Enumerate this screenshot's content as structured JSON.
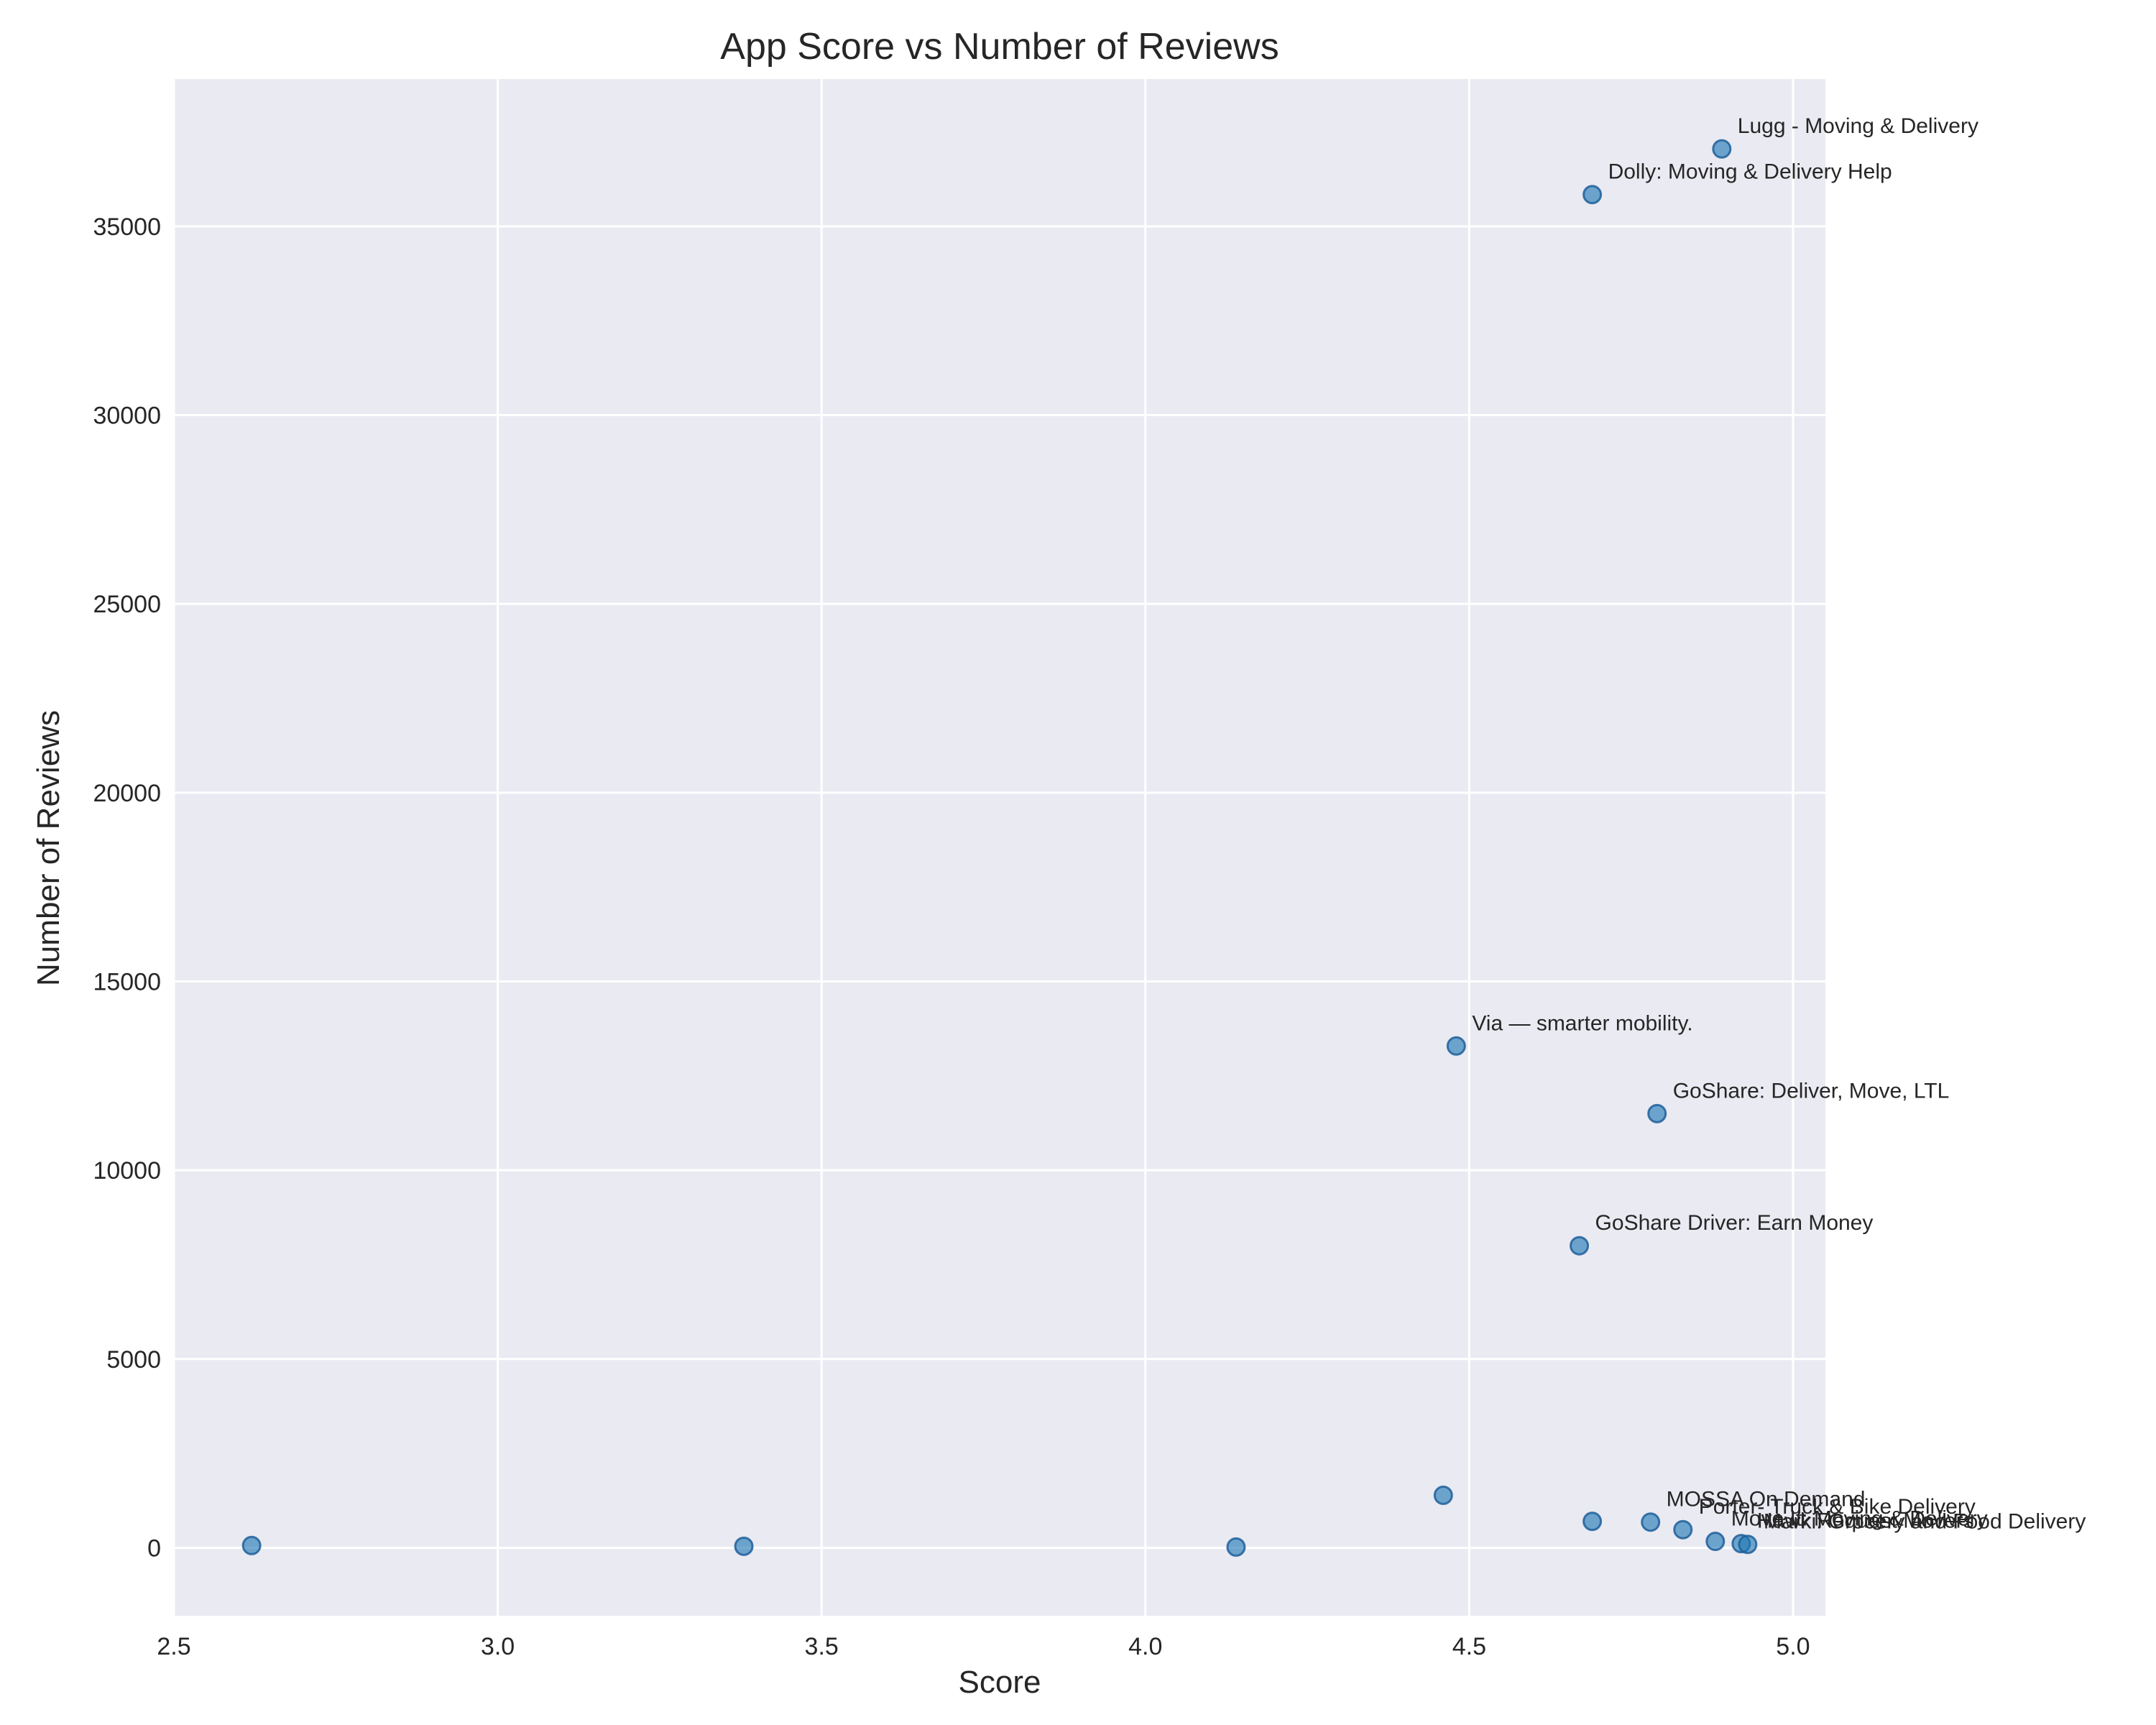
{
  "colors": {
    "plot_background": "#EAEAF2",
    "grid": "#FFFFFF",
    "point_fill": "#1F77B4",
    "point_edge": "#1F5F9A",
    "text": "#262626"
  },
  "chart_data": {
    "type": "scatter",
    "title": "App Score vs Number of Reviews",
    "xlabel": "Score",
    "ylabel": "Number of Reviews",
    "xlim": [
      2.5,
      5.05
    ],
    "ylim": [
      -1800,
      38900
    ],
    "xticks": [
      2.5,
      3.0,
      3.5,
      4.0,
      4.5,
      5.0
    ],
    "xtick_labels": [
      "2.5",
      "3.0",
      "3.5",
      "4.0",
      "4.5",
      "5.0"
    ],
    "yticks": [
      0,
      5000,
      10000,
      15000,
      20000,
      25000,
      30000,
      35000
    ],
    "ytick_labels": [
      "0",
      "5000",
      "10000",
      "15000",
      "20000",
      "25000",
      "30000",
      "35000"
    ],
    "grid": true,
    "points": [
      {
        "x": 4.89,
        "y": 37050,
        "label": "Lugg - Moving & Delivery"
      },
      {
        "x": 4.69,
        "y": 35840,
        "label": "Dolly: Moving & Delivery Help"
      },
      {
        "x": 4.48,
        "y": 13290,
        "label": "Via — smarter mobility."
      },
      {
        "x": 4.79,
        "y": 11500,
        "label": "GoShare: Deliver, Move, LTL"
      },
      {
        "x": 4.67,
        "y": 8000,
        "label": "GoShare Driver: Earn Money"
      },
      {
        "x": 4.46,
        "y": 1390,
        "label": ""
      },
      {
        "x": 4.69,
        "y": 700,
        "label": ""
      },
      {
        "x": 4.78,
        "y": 680,
        "label": "MOSSA On Demand"
      },
      {
        "x": 4.83,
        "y": 480,
        "label": "Porter- Truck & Bike Delivery"
      },
      {
        "x": 4.88,
        "y": 170,
        "label": "Move It: Moving & Delivery"
      },
      {
        "x": 4.92,
        "y": 110,
        "label": "Hawk Request Movers"
      },
      {
        "x": 4.93,
        "y": 90,
        "label": "Marki: Grocery and Food Delivery"
      },
      {
        "x": 2.62,
        "y": 60,
        "label": ""
      },
      {
        "x": 3.38,
        "y": 40,
        "label": ""
      },
      {
        "x": 4.14,
        "y": 20,
        "label": ""
      }
    ]
  }
}
